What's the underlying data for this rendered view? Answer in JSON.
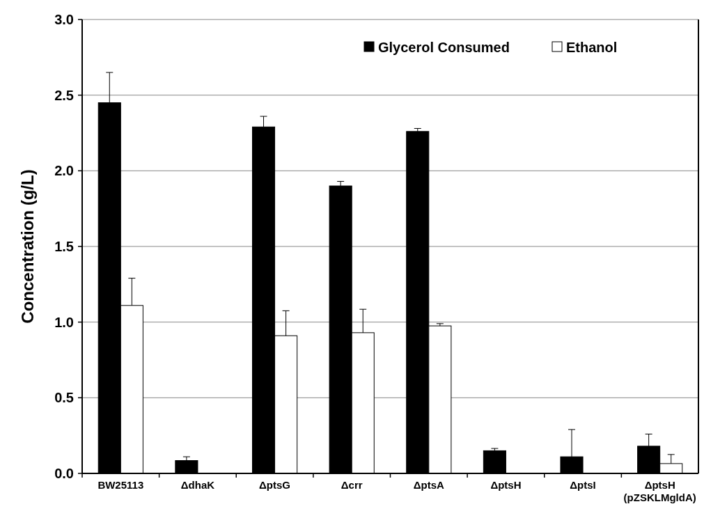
{
  "chart_data": {
    "type": "bar",
    "ylabel": "Concentration (g/L)",
    "categories": [
      "BW25113",
      "ΔdhaK",
      "ΔptsG",
      "Δcrr",
      "ΔptsA",
      "ΔptsH",
      "ΔptsI",
      "ΔptsH\n(pZSKLMgldA)"
    ],
    "series": [
      {
        "name": "Glycerol Consumed",
        "color": "#000000",
        "values": [
          2.45,
          0.085,
          2.29,
          1.9,
          2.26,
          0.15,
          0.11,
          0.18
        ],
        "errors": [
          [
            2.45,
            2.65
          ],
          [
            0.085,
            0.11
          ],
          [
            2.29,
            2.36
          ],
          [
            1.9,
            1.93
          ],
          [
            2.26,
            2.28
          ],
          [
            0.15,
            0.165
          ],
          [
            0.11,
            0.29
          ],
          [
            0.18,
            0.26
          ]
        ]
      },
      {
        "name": "Ethanol",
        "color": "#ffffff",
        "values": [
          1.11,
          0,
          0.91,
          0.93,
          0.975,
          0,
          0,
          0.065
        ],
        "errors": [
          [
            1.11,
            1.29
          ],
          null,
          [
            0.91,
            1.075
          ],
          [
            0.93,
            1.085
          ],
          [
            0.975,
            0.99
          ],
          null,
          null,
          [
            0.065,
            0.125
          ]
        ]
      }
    ],
    "ylim": [
      0,
      3
    ],
    "yticks": [
      {
        "value": 0,
        "label": "0.0"
      },
      {
        "value": 0.5,
        "label": "0.5"
      },
      {
        "value": 1,
        "label": "1.0"
      },
      {
        "value": 1.5,
        "label": "1.5"
      },
      {
        "value": 2,
        "label": "2.0"
      },
      {
        "value": 2.5,
        "label": "2.5"
      },
      {
        "value": 3,
        "label": "3.0"
      }
    ],
    "grid": "y",
    "legend": "top right"
  }
}
